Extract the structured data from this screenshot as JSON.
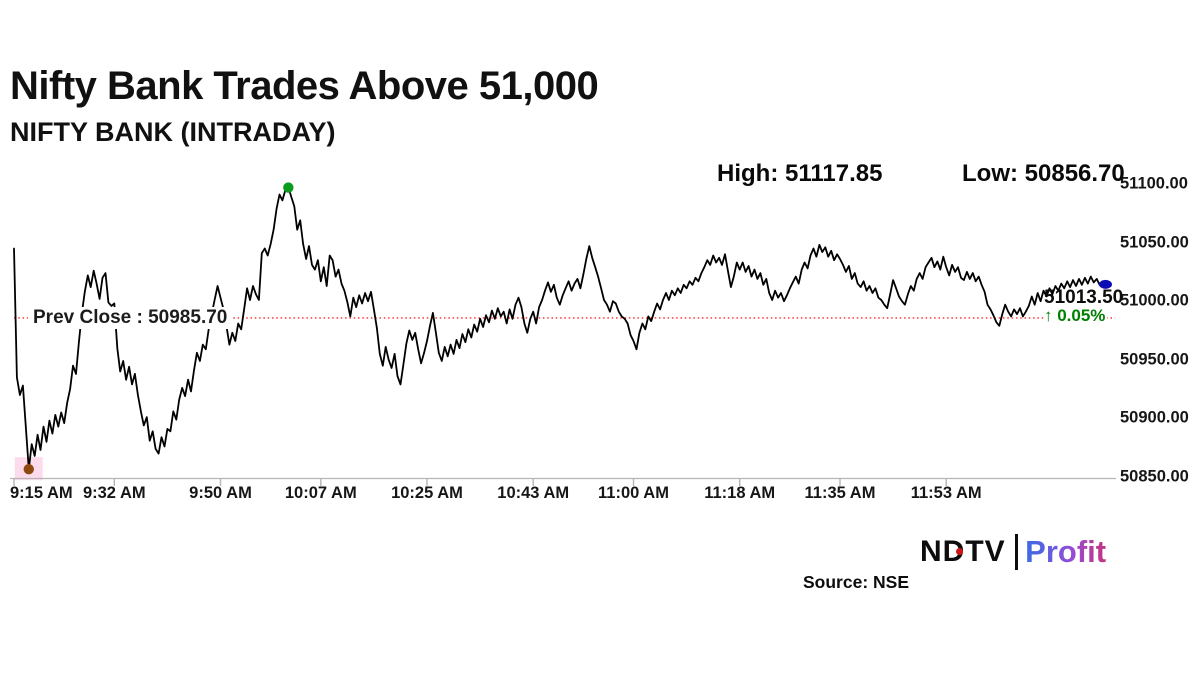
{
  "page": {
    "background": "#ffffff"
  },
  "header": {
    "title": "Nifty Bank Trades Above 51,000",
    "subtitle": "NIFTY BANK (INTRADAY)",
    "high_stat": "High: 51117.85",
    "low_stat": "Low: 50856.70"
  },
  "price_callout": {
    "last_price": "51013.50",
    "change_pct": "↑ 0.05%"
  },
  "prev_close_label": "Prev Close : 50985.70",
  "footer": {
    "logo": {
      "ndtv": "NDTV",
      "separator_color": "#0d0d0d",
      "profit": "Profit"
    },
    "source": "Source: NSE"
  },
  "chart_data": {
    "type": "line",
    "title": "NIFTY BANK (INTRADAY)",
    "xlabel": "",
    "ylabel": "",
    "grid": false,
    "legend": false,
    "y_axis": {
      "range": [
        50850,
        51100
      ],
      "tick_values": [
        51100,
        51050,
        51000,
        50950,
        50900,
        50850
      ],
      "tick_labels": [
        "51100.00",
        "51050.00",
        "51000.00",
        "50950.00",
        "50900.00",
        "50850.00"
      ]
    },
    "x_axis": {
      "unit": "minutes-since-9:15AM",
      "tick_minutes": [
        0,
        17,
        35,
        52,
        70,
        88,
        105,
        123,
        140,
        158
      ],
      "tick_labels": [
        "9:15 AM",
        "9:32 AM",
        "9:50 AM",
        "10:07 AM",
        "10:25 AM",
        "10:43 AM",
        "11:00 AM",
        "11:18 AM",
        "11:35 AM",
        "11:53 AM"
      ]
    },
    "stats": {
      "high": 51117.85,
      "low": 50856.7,
      "last": 51013.5,
      "prev_close": 50985.7,
      "change_pct": "+0.05%"
    },
    "prev_close": {
      "value": 50985.7,
      "line_color": "#ff2626",
      "label": "Prev Close : 50985.70"
    },
    "colors": {
      "line": "#000000",
      "axis": "#b5b5b5",
      "up_green": "#008000"
    },
    "markers": [
      {
        "name": "low-marker",
        "t": 2.5,
        "value": 50856.7,
        "color": "#8c4a10",
        "highlight": "#fcdcec"
      },
      {
        "name": "high-marker",
        "t": 46.5,
        "value": 51097,
        "color": "#0b9b1d"
      },
      {
        "name": "last-marker",
        "t": 185,
        "value": 51013.5,
        "color": "#0c0cb4"
      }
    ],
    "series": {
      "name": "NIFTY BANK",
      "t_start_min": 0,
      "t_step_min": 0.5,
      "values": [
        51045,
        50935,
        50920,
        50928,
        50893,
        50856.7,
        50878,
        50868,
        50886,
        50873,
        50893,
        50880,
        50898,
        50887,
        50903,
        50893,
        50905,
        50896,
        50913,
        50925,
        50945,
        50938,
        50965,
        50990,
        51008,
        51022,
        51012,
        51026,
        51015,
        51002,
        51020,
        51024,
        50999,
        50996,
        50998,
        50960,
        50940,
        50949,
        50933,
        50944,
        50929,
        50938,
        50920,
        50906,
        50894,
        50901,
        50881,
        50889,
        50874,
        50870,
        50884,
        50876,
        50891,
        50889,
        50906,
        50899,
        50916,
        50926,
        50919,
        50933,
        50923,
        50941,
        50956,
        50949,
        50963,
        50959,
        50976,
        50989,
        51001,
        51013,
        51003,
        50993,
        50979,
        50963,
        50973,
        50966,
        50981,
        50976,
        50993,
        51011,
        51001,
        51013,
        51006,
        51001,
        51041,
        51045,
        51039,
        51049,
        51061,
        51079,
        51091,
        51086,
        51095,
        51097,
        51089,
        51081,
        51061,
        51069,
        51049,
        51036,
        51047,
        51031,
        51027,
        51035,
        51017,
        51029,
        51013,
        51039,
        51035,
        51021,
        51027,
        51015,
        51009,
        50999,
        50987,
        51003,
        50995,
        51005,
        50998,
        51007,
        51000,
        51008,
        50993,
        50977,
        50955,
        50945,
        50961,
        50950,
        50943,
        50955,
        50936,
        50929,
        50946,
        50964,
        50975,
        50967,
        50973,
        50959,
        50947,
        50956,
        50966,
        50979,
        50990,
        50973,
        50956,
        50949,
        50961,
        50953,
        50963,
        50955,
        50967,
        50960,
        50972,
        50965,
        50976,
        50969,
        50980,
        50974,
        50985,
        50978,
        50988,
        50982,
        50992,
        50985,
        50994,
        50987,
        50991,
        50981,
        50993,
        50985,
        50997,
        51003,
        50995,
        50981,
        50973,
        50985,
        50991,
        50981,
        50995,
        51001,
        51009,
        51016,
        51008,
        51014,
        51003,
        50997,
        51005,
        51011,
        51017,
        51009,
        51015,
        51019,
        51011,
        51023,
        51036,
        51047,
        51037,
        51029,
        51021,
        51011,
        51001,
        50997,
        50991,
        51000,
        50998,
        50991,
        50987,
        50985,
        50981,
        50971,
        50966,
        50959,
        50973,
        50981,
        50976,
        50987,
        50983,
        50991,
        50998,
        50993,
        51001,
        51007,
        51001,
        51009,
        51005,
        51011,
        51007,
        51014,
        51011,
        51017,
        51014,
        51020,
        51017,
        51024,
        51029,
        51035,
        51031,
        51039,
        51033,
        51037,
        51031,
        51040,
        51026,
        51012,
        51021,
        51033,
        51027,
        51033,
        51025,
        51030,
        51021,
        51027,
        51019,
        51024,
        51014,
        51019,
        51007,
        51001,
        51009,
        51003,
        51007,
        51000,
        51005,
        51011,
        51016,
        51021,
        51015,
        51027,
        51033,
        51028,
        51039,
        51045,
        51038,
        51048,
        51042,
        51046,
        51038,
        51043,
        51035,
        51040,
        51036,
        51031,
        51025,
        51030,
        51019,
        51024,
        51015,
        51012,
        51017,
        51009,
        51013,
        51007,
        51011,
        51003,
        51001,
        50997,
        50994,
        51006,
        51018,
        51011,
        51004,
        51000,
        50997,
        51006,
        51013,
        51009,
        51019,
        51024,
        51019,
        51029,
        51033,
        51037,
        51029,
        51034,
        51027,
        51038,
        51029,
        51022,
        51031,
        51025,
        51029,
        51020,
        51018,
        51025,
        51019,
        51024,
        51017,
        51021,
        51014,
        51008,
        50997,
        50993,
        50988,
        50982,
        50979,
        50989,
        50997,
        50991,
        50987,
        50993,
        50989,
        50994,
        50987,
        50991,
        50996,
        51004,
        50997,
        51007,
        51000,
        51009,
        51004,
        51011,
        51006,
        51013,
        51009,
        51015,
        51011,
        51017,
        51012,
        51018,
        51013,
        51019,
        51014,
        51020,
        51015,
        51021,
        51016,
        51019,
        51014,
        51017,
        51013.5
      ]
    }
  }
}
